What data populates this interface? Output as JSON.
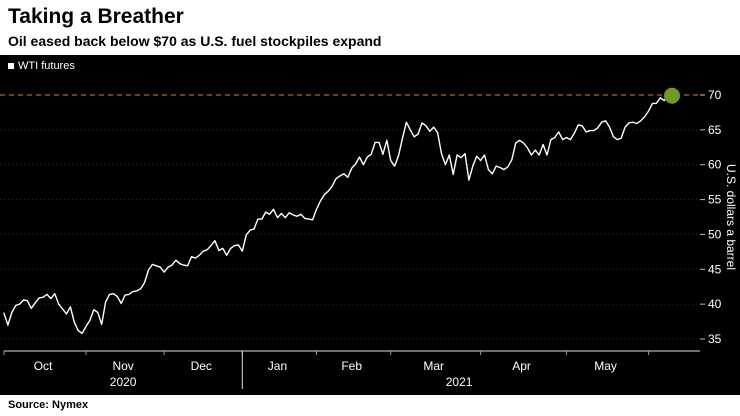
{
  "header": {
    "title": "Taking a Breather",
    "subtitle": "Oil eased back below $70 as U.S. fuel stockpiles expand"
  },
  "legend": {
    "label": "WTI futures"
  },
  "footer": {
    "source": "Source: Nymex"
  },
  "chart_data": {
    "type": "line",
    "title": "Taking a Breather",
    "subtitle": "Oil eased back below $70 as U.S. fuel stockpiles expand",
    "series_name": "WTI futures",
    "ylabel": "U.S. dollars a barrel",
    "ylim": [
      35,
      70
    ],
    "y_ticks": [
      70,
      65,
      60,
      55,
      50,
      45,
      40,
      35
    ],
    "grid": "dotted horizontal",
    "legend_position": "top-left",
    "colors": {
      "background": "#000000",
      "line": "#ffffff",
      "grid": "#2e2e2e",
      "axis": "#dddddd",
      "text": "#ffffff",
      "threshold": "#cc5436",
      "end_marker": "#6f9a24"
    },
    "threshold_line": {
      "value": 70,
      "color": "#cc5436",
      "style": "dashed"
    },
    "end_marker": {
      "value": 69.9,
      "color": "#6f9a24"
    },
    "x_axis": {
      "months": [
        {
          "label": "Oct",
          "center": 10
        },
        {
          "label": "Nov",
          "center": 30.5
        },
        {
          "label": "Dec",
          "center": 50.5
        },
        {
          "label": "Jan",
          "center": 70
        },
        {
          "label": "Feb",
          "center": 89
        },
        {
          "label": "Mar",
          "center": 110
        },
        {
          "label": "Apr",
          "center": 132.5
        },
        {
          "label": "May",
          "center": 154
        }
      ],
      "month_starts": [
        0,
        21,
        41,
        61,
        80,
        99,
        122,
        144,
        165
      ],
      "years": [
        {
          "label": "2020",
          "center": 30.5
        },
        {
          "label": "2021",
          "center": 116.5
        }
      ],
      "year_divider_index": 61
    },
    "values": [
      38.7,
      37.0,
      38.8,
      39.8,
      40.0,
      40.6,
      40.5,
      39.4,
      40.2,
      40.9,
      41.0,
      41.4,
      40.8,
      41.5,
      40.0,
      39.3,
      38.6,
      39.6,
      37.4,
      36.2,
      35.8,
      36.8,
      37.7,
      39.2,
      38.8,
      37.1,
      40.3,
      41.4,
      41.5,
      41.1,
      40.1,
      41.3,
      41.4,
      41.8,
      41.9,
      42.2,
      43.1,
      44.9,
      45.7,
      45.5,
      45.3,
      44.6,
      45.3,
      45.6,
      46.3,
      45.8,
      45.6,
      45.5,
      46.8,
      46.6,
      47.0,
      47.6,
      47.8,
      48.4,
      49.1,
      47.7,
      48.0,
      47.0,
      48.0,
      48.4,
      48.5,
      47.6,
      49.9,
      50.6,
      50.8,
      52.2,
      52.2,
      53.2,
      52.9,
      53.6,
      52.4,
      53.0,
      52.4,
      53.1,
      52.8,
      52.6,
      52.9,
      52.3,
      52.2,
      52.1,
      53.6,
      54.8,
      55.7,
      56.2,
      56.9,
      58.0,
      58.4,
      58.7,
      58.2,
      59.5,
      60.1,
      61.1,
      60.0,
      61.1,
      61.5,
      63.2,
      63.2,
      61.5,
      63.5,
      60.6,
      59.8,
      61.3,
      63.8,
      66.1,
      65.0,
      64.0,
      64.4,
      66.0,
      65.6,
      64.8,
      65.4,
      64.6,
      61.6,
      60.0,
      61.4,
      58.6,
      61.4,
      61.0,
      61.6,
      57.8,
      59.8,
      61.2,
      60.6,
      61.4,
      59.3,
      58.7,
      59.8,
      59.6,
      59.3,
      59.7,
      60.7,
      63.1,
      63.5,
      63.1,
      62.4,
      61.4,
      62.1,
      61.4,
      62.9,
      61.4,
      63.6,
      63.9,
      64.7,
      63.6,
      63.9,
      63.6,
      64.5,
      65.7,
      65.6,
      64.7,
      64.9,
      64.9,
      65.3,
      66.1,
      66.3,
      65.4,
      64.0,
      63.6,
      63.8,
      65.4,
      66.0,
      66.1,
      65.9,
      66.3,
      66.9,
      67.7,
      68.8,
      68.8,
      69.6,
      69.2,
      70.0,
      69.9
    ]
  }
}
